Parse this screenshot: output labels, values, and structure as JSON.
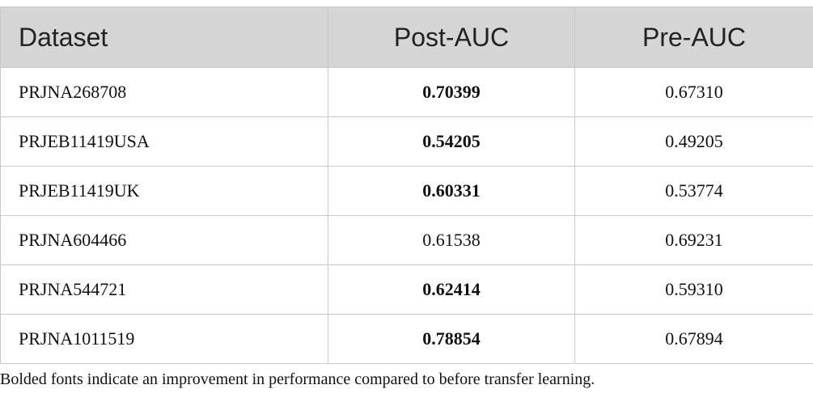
{
  "table": {
    "columns": [
      "Dataset",
      "Post-AUC",
      "Pre-AUC"
    ],
    "rows": [
      {
        "cells": [
          "PRJNA268708",
          "0.70399",
          "0.67310"
        ],
        "bold": [
          false,
          true,
          false
        ]
      },
      {
        "cells": [
          "PRJEB11419USA",
          "0.54205",
          "0.49205"
        ],
        "bold": [
          false,
          true,
          false
        ]
      },
      {
        "cells": [
          "PRJEB11419UK",
          "0.60331",
          "0.53774"
        ],
        "bold": [
          false,
          true,
          false
        ]
      },
      {
        "cells": [
          "PRJNA604466",
          "0.61538",
          "0.69231"
        ],
        "bold": [
          false,
          false,
          false
        ]
      },
      {
        "cells": [
          "PRJNA544721",
          "0.62414",
          "0.59310"
        ],
        "bold": [
          false,
          true,
          false
        ]
      },
      {
        "cells": [
          "PRJNA1011519",
          "0.78854",
          "0.67894"
        ],
        "bold": [
          false,
          true,
          false
        ]
      }
    ],
    "footnote": "Bolded fonts indicate an improvement in performance compared to before transfer learning."
  }
}
